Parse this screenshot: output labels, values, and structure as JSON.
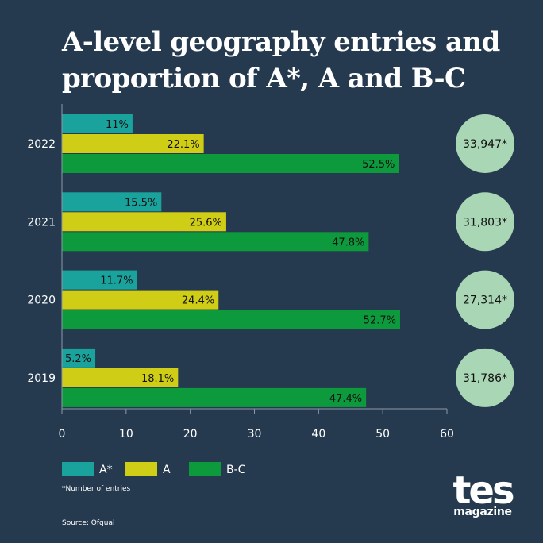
{
  "title": "A-level geography entries and\nproportion of A*, A and B-C",
  "footnote": "*Number of entries",
  "source": "Source: Ofqual",
  "logo": {
    "main": "tes",
    "sub": "magazine"
  },
  "colors": {
    "background": "#263a4f",
    "A*": "#1aa39c",
    "A": "#cfcd15",
    "B-C": "#0d9a3d",
    "circle": "#a9d6b4",
    "axis": "#8c9aa8"
  },
  "chart_data": {
    "type": "bar",
    "orientation": "horizontal",
    "categories": [
      "2022",
      "2021",
      "2020",
      "2019"
    ],
    "series": [
      {
        "name": "A*",
        "values": [
          11,
          15.5,
          11.7,
          5.2
        ],
        "labels": [
          "11%",
          "15.5%",
          "11.7%",
          "5.2%"
        ]
      },
      {
        "name": "A",
        "values": [
          22.1,
          25.6,
          24.4,
          18.1
        ],
        "labels": [
          "22.1%",
          "25.6%",
          "24.4%",
          "18.1%"
        ]
      },
      {
        "name": "B-C",
        "values": [
          52.5,
          47.8,
          52.7,
          47.4
        ],
        "labels": [
          "52.5%",
          "47.8%",
          "52.7%",
          "47.4%"
        ]
      }
    ],
    "entries": [
      "33,947*",
      "31,803*",
      "27,314*",
      "31,786*"
    ],
    "xlim": [
      0,
      60
    ],
    "xticks": [
      0,
      10,
      20,
      30,
      40,
      50,
      60
    ],
    "grid": false,
    "legend_position": "bottom-left"
  }
}
